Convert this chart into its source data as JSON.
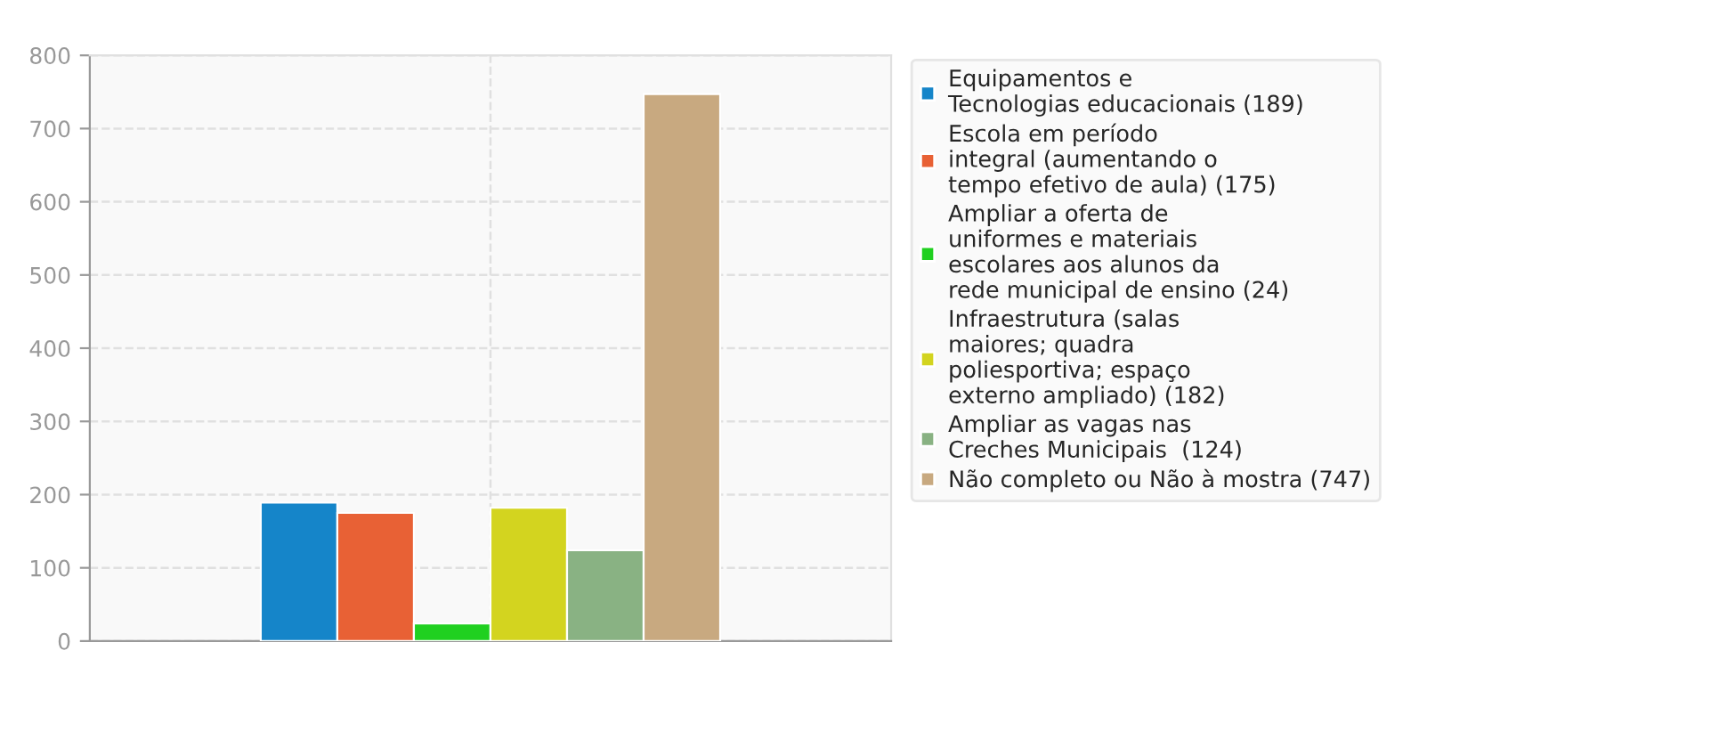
{
  "chart_data": {
    "type": "bar",
    "categories": [
      null
    ],
    "series": [
      {
        "name": "Equipamentos e\nTecnologias educacionais (189)",
        "color": "#1585c9",
        "values": [
          189
        ]
      },
      {
        "name": "Escola em período\nintegral (aumentando o\ntempo efetivo de aula) (175)",
        "color": "#e86135",
        "values": [
          175
        ]
      },
      {
        "name": "Ampliar a oferta de\nuniformes e materiais\nescolares aos alunos da\nrede municipal de ensino (24)",
        "color": "#20d020",
        "values": [
          24
        ]
      },
      {
        "name": "Infraestrutura (salas\nmaiores; quadra\npoliesportiva; espaço\nexterno ampliado) (182)",
        "color": "#d3d41f",
        "values": [
          182
        ]
      },
      {
        "name": "Ampliar as vagas nas\nCreches Municipais  (124)",
        "color": "#89b283",
        "values": [
          124
        ]
      },
      {
        "name": "Não completo ou Não à mostra (747)",
        "color": "#c8a980",
        "values": [
          747
        ]
      }
    ],
    "ylim": [
      0,
      800
    ],
    "yticks": [
      0,
      100,
      200,
      300,
      400,
      500,
      600,
      700,
      800
    ],
    "grid": true,
    "legend": "right"
  }
}
